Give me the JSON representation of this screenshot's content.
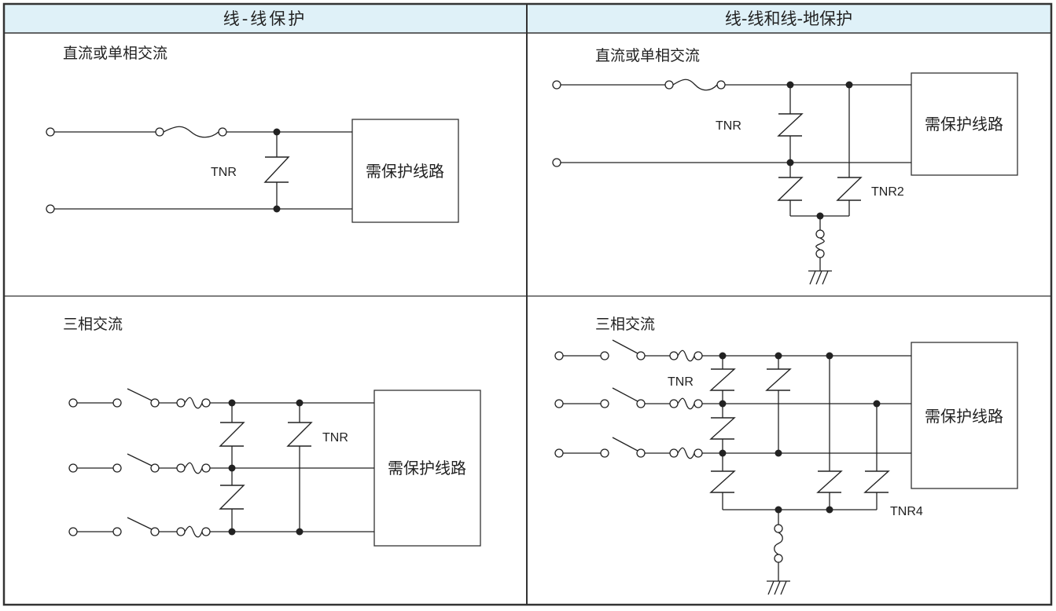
{
  "colors": {
    "header_fill": "#dff1f8",
    "border": "#333333",
    "wire": "#222222"
  },
  "table": {
    "headers": [
      "线-线保护",
      "线-线和线-地保护"
    ]
  },
  "panels": {
    "tl": {
      "title": "直流或单相交流",
      "tnr_label": "TNR",
      "box_label": "需保护线路"
    },
    "tr": {
      "title": "直流或单相交流",
      "tnr_label": "TNR",
      "tnr2_label": "TNR2",
      "box_label": "需保护线路"
    },
    "bl": {
      "title": "三相交流",
      "tnr_label": "TNR",
      "box_label": "需保护线路"
    },
    "br": {
      "title": "三相交流",
      "tnr_label": "TNR",
      "tnr4_label": "TNR4",
      "box_label": "需保护线路"
    }
  }
}
